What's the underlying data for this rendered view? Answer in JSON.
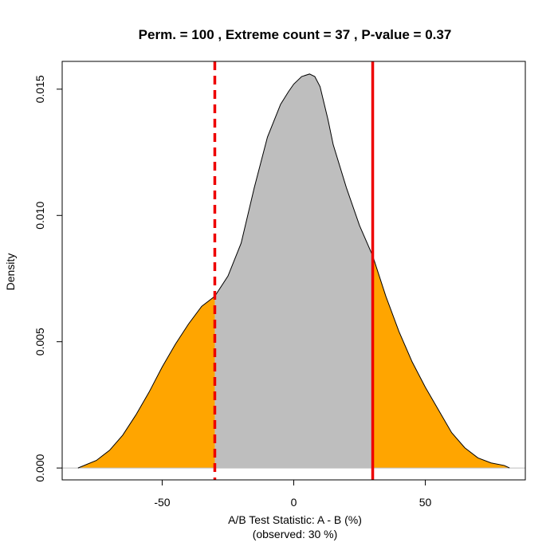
{
  "chart_data": {
    "type": "area",
    "title": "Perm. = 100 , Extreme count = 37 , P-value = 0.37",
    "xlabel": "A/B Test Statistic: A - B (%)",
    "xlabel_sub": "(observed: 30 %)",
    "ylabel": "Density",
    "xlim": [
      -88,
      88
    ],
    "ylim": [
      -0.00047,
      0.0161
    ],
    "x_ticks": [
      -50,
      0,
      50
    ],
    "x_tick_labels": [
      "-50",
      "0",
      "50"
    ],
    "y_ticks": [
      0.0,
      0.005,
      0.01,
      0.015
    ],
    "y_tick_labels": [
      "0.000",
      "0.005",
      "0.010",
      "0.015"
    ],
    "observed": 30,
    "lower_cutoff": -30,
    "upper_cutoff": 30,
    "series": [
      {
        "x": [
          -82,
          -75,
          -70,
          -65,
          -60,
          -55,
          -50,
          -45,
          -40,
          -35,
          -30,
          -25,
          -20,
          -15,
          -10,
          -5,
          -2,
          0,
          3,
          6,
          8,
          10,
          13,
          15,
          20,
          25,
          30,
          35,
          40,
          45,
          50,
          55,
          60,
          65,
          70,
          75,
          80,
          82
        ],
        "y": [
          0.0,
          0.0003,
          0.0007,
          0.0013,
          0.0021,
          0.003,
          0.004,
          0.0049,
          0.0057,
          0.0064,
          0.0068,
          0.0076,
          0.0089,
          0.0111,
          0.0131,
          0.0144,
          0.0149,
          0.0152,
          0.0155,
          0.0156,
          0.0155,
          0.0151,
          0.0138,
          0.0128,
          0.0111,
          0.0096,
          0.0084,
          0.0068,
          0.0054,
          0.0042,
          0.0032,
          0.0023,
          0.0014,
          0.0008,
          0.0004,
          0.0002,
          0.0001,
          0.0
        ]
      }
    ],
    "colors": {
      "tail_fill": "#FFA500",
      "center_fill": "#BEBEBE",
      "density_line": "#000000",
      "observed_line": "#EE0000",
      "zero_line": "#BEBEBE"
    },
    "grid": false,
    "legend": "none"
  }
}
